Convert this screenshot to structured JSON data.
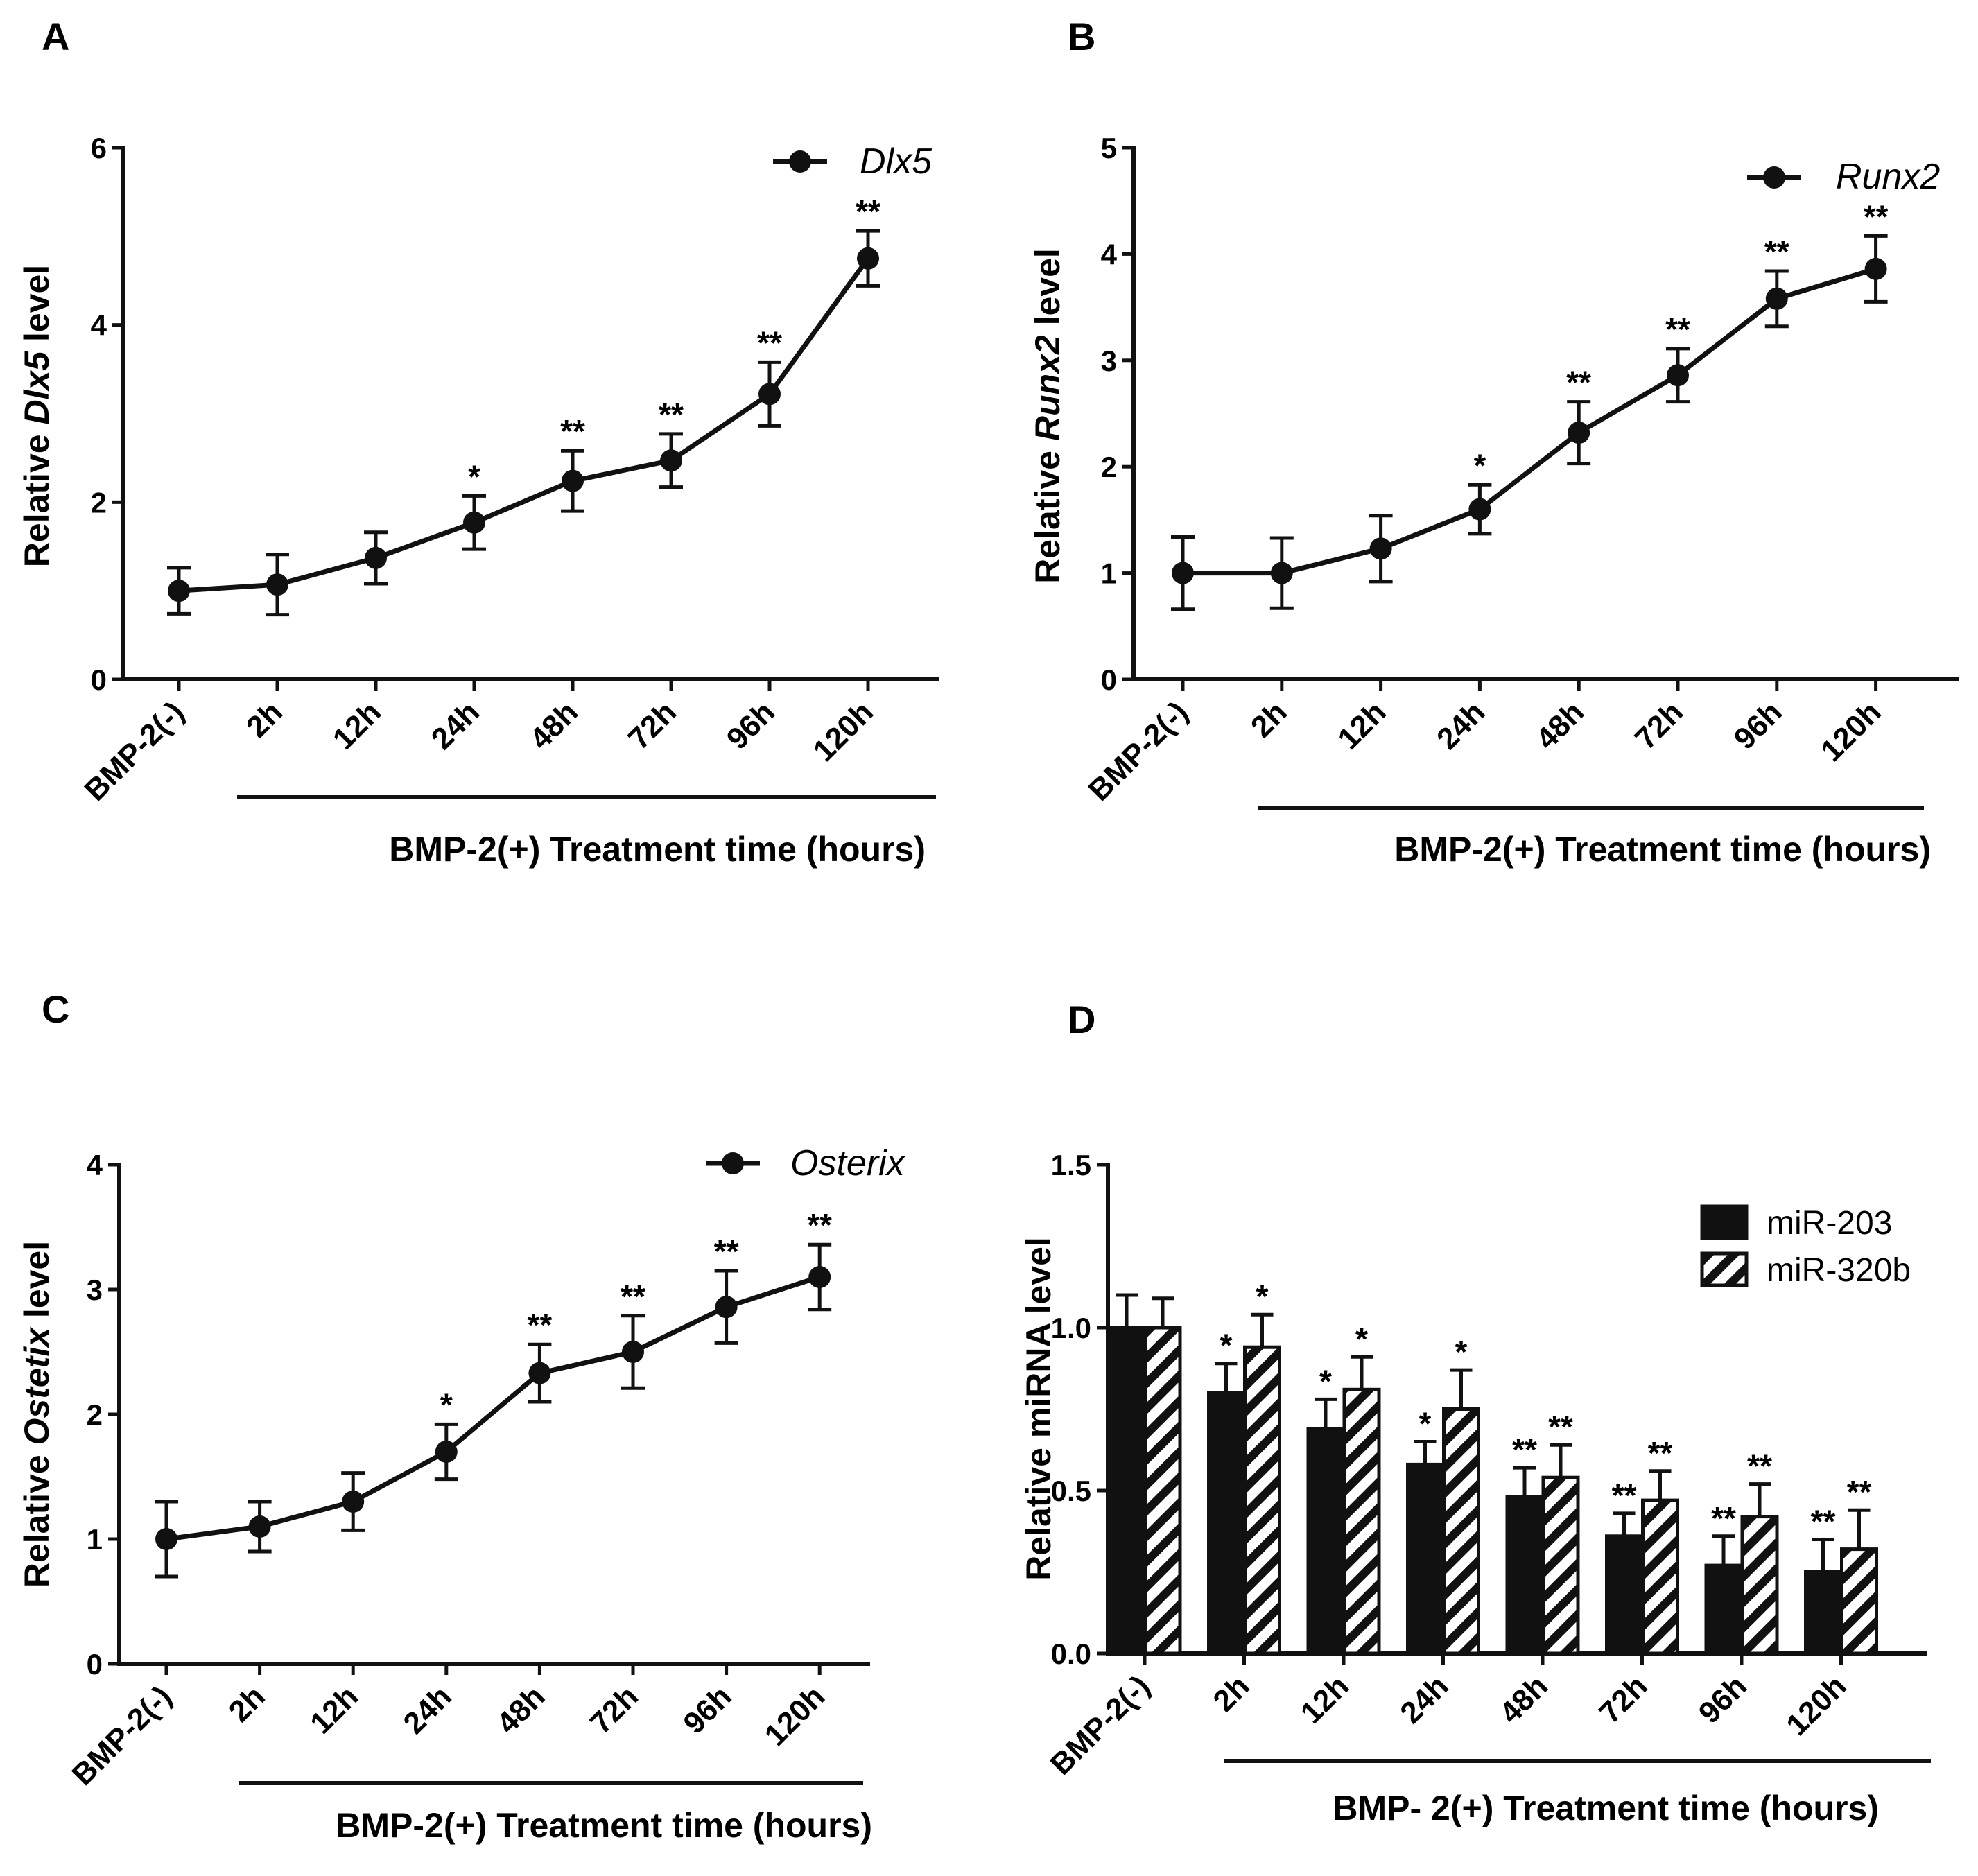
{
  "figure": {
    "panel_labels": [
      "A",
      "B",
      "C",
      "D"
    ],
    "colors": {
      "ink": "#111111",
      "background": "#ffffff"
    }
  },
  "chart_data": [
    {
      "panel": "A",
      "type": "line",
      "title": "",
      "categories": [
        "BMP-2(-)",
        "2h",
        "12h",
        "24h",
        "48h",
        "72h",
        "96h",
        "120h"
      ],
      "series": [
        {
          "name": "Dlx5",
          "values": [
            1.0,
            1.07,
            1.37,
            1.77,
            2.24,
            2.47,
            3.22,
            4.75
          ],
          "errors": [
            0.26,
            0.34,
            0.29,
            0.3,
            0.34,
            0.3,
            0.36,
            0.31
          ]
        }
      ],
      "significance": [
        "",
        "",
        "",
        "*",
        "**",
        "**",
        "**",
        "**"
      ],
      "ylabel_prefix": "Relative ",
      "ylabel_gene": "Dlx5",
      "ylabel_suffix": " level",
      "xlabel": "BMP-2(+) Treatment time (hours)",
      "ylim": [
        0,
        6
      ],
      "yticks": [
        "0",
        "2",
        "4",
        "6"
      ],
      "ytick_values": [
        0,
        2,
        4,
        6
      ]
    },
    {
      "panel": "B",
      "type": "line",
      "title": "",
      "categories": [
        "BMP-2(-)",
        "2h",
        "12h",
        "24h",
        "48h",
        "72h",
        "96h",
        "120h"
      ],
      "series": [
        {
          "name": "Runx2",
          "values": [
            1.0,
            1.0,
            1.23,
            1.6,
            2.32,
            2.86,
            3.58,
            3.86
          ],
          "errors": [
            0.34,
            0.33,
            0.31,
            0.23,
            0.29,
            0.25,
            0.26,
            0.31
          ]
        }
      ],
      "significance": [
        "",
        "",
        "",
        "*",
        "**",
        "**",
        "**",
        "**"
      ],
      "ylabel_prefix": "Relative ",
      "ylabel_gene": "Runx2",
      "ylabel_suffix": " level",
      "xlabel": "BMP-2(+) Treatment time (hours)",
      "ylim": [
        0,
        5
      ],
      "yticks": [
        "0",
        "1",
        "2",
        "3",
        "4",
        "5"
      ],
      "ytick_values": [
        0,
        1,
        2,
        3,
        4,
        5
      ]
    },
    {
      "panel": "C",
      "type": "line",
      "title": "",
      "categories": [
        "BMP-2(-)",
        "2h",
        "12h",
        "24h",
        "48h",
        "72h",
        "96h",
        "120h"
      ],
      "series": [
        {
          "name": "Osterix",
          "values": [
            1.0,
            1.1,
            1.3,
            1.7,
            2.33,
            2.5,
            2.86,
            3.1
          ],
          "errors": [
            0.3,
            0.2,
            0.23,
            0.22,
            0.23,
            0.29,
            0.29,
            0.26
          ]
        }
      ],
      "significance": [
        "",
        "",
        "",
        "*",
        "**",
        "**",
        "**",
        "**"
      ],
      "ylabel_prefix": "Relative ",
      "ylabel_gene": "Ostetix",
      "ylabel_suffix": " level",
      "xlabel": "BMP-2(+) Treatment time (hours)",
      "ylim": [
        0,
        4
      ],
      "yticks": [
        "0",
        "1",
        "2",
        "3",
        "4"
      ],
      "ytick_values": [
        0,
        1,
        2,
        3,
        4
      ]
    },
    {
      "panel": "D",
      "type": "bar",
      "title": "",
      "categories": [
        "BMP-2(-)",
        "2h",
        "12h",
        "24h",
        "48h",
        "72h",
        "96h",
        "120h"
      ],
      "series": [
        {
          "name": "miR-203",
          "fill": "solid",
          "values": [
            1.0,
            0.8,
            0.69,
            0.58,
            0.48,
            0.36,
            0.27,
            0.25
          ],
          "errors": [
            0.1,
            0.09,
            0.09,
            0.07,
            0.09,
            0.07,
            0.09,
            0.1
          ],
          "significance": [
            "",
            "*",
            "*",
            "*",
            "**",
            "**",
            "**",
            "**"
          ]
        },
        {
          "name": "miR-320b",
          "fill": "hatched",
          "values": [
            1.0,
            0.94,
            0.81,
            0.75,
            0.54,
            0.47,
            0.42,
            0.32
          ],
          "errors": [
            0.09,
            0.1,
            0.1,
            0.12,
            0.1,
            0.09,
            0.1,
            0.12
          ],
          "significance": [
            "",
            "*",
            "*",
            "*",
            "**",
            "**",
            "**",
            "**"
          ]
        }
      ],
      "ylabel": "Relative miRNA level",
      "xlabel": "BMP- 2(+) Treatment time (hours)",
      "ylim": [
        0,
        1.5
      ],
      "yticks": [
        "0.0",
        "0.5",
        "1.0",
        "1.5"
      ],
      "ytick_values": [
        0,
        0.5,
        1.0,
        1.5
      ]
    }
  ]
}
